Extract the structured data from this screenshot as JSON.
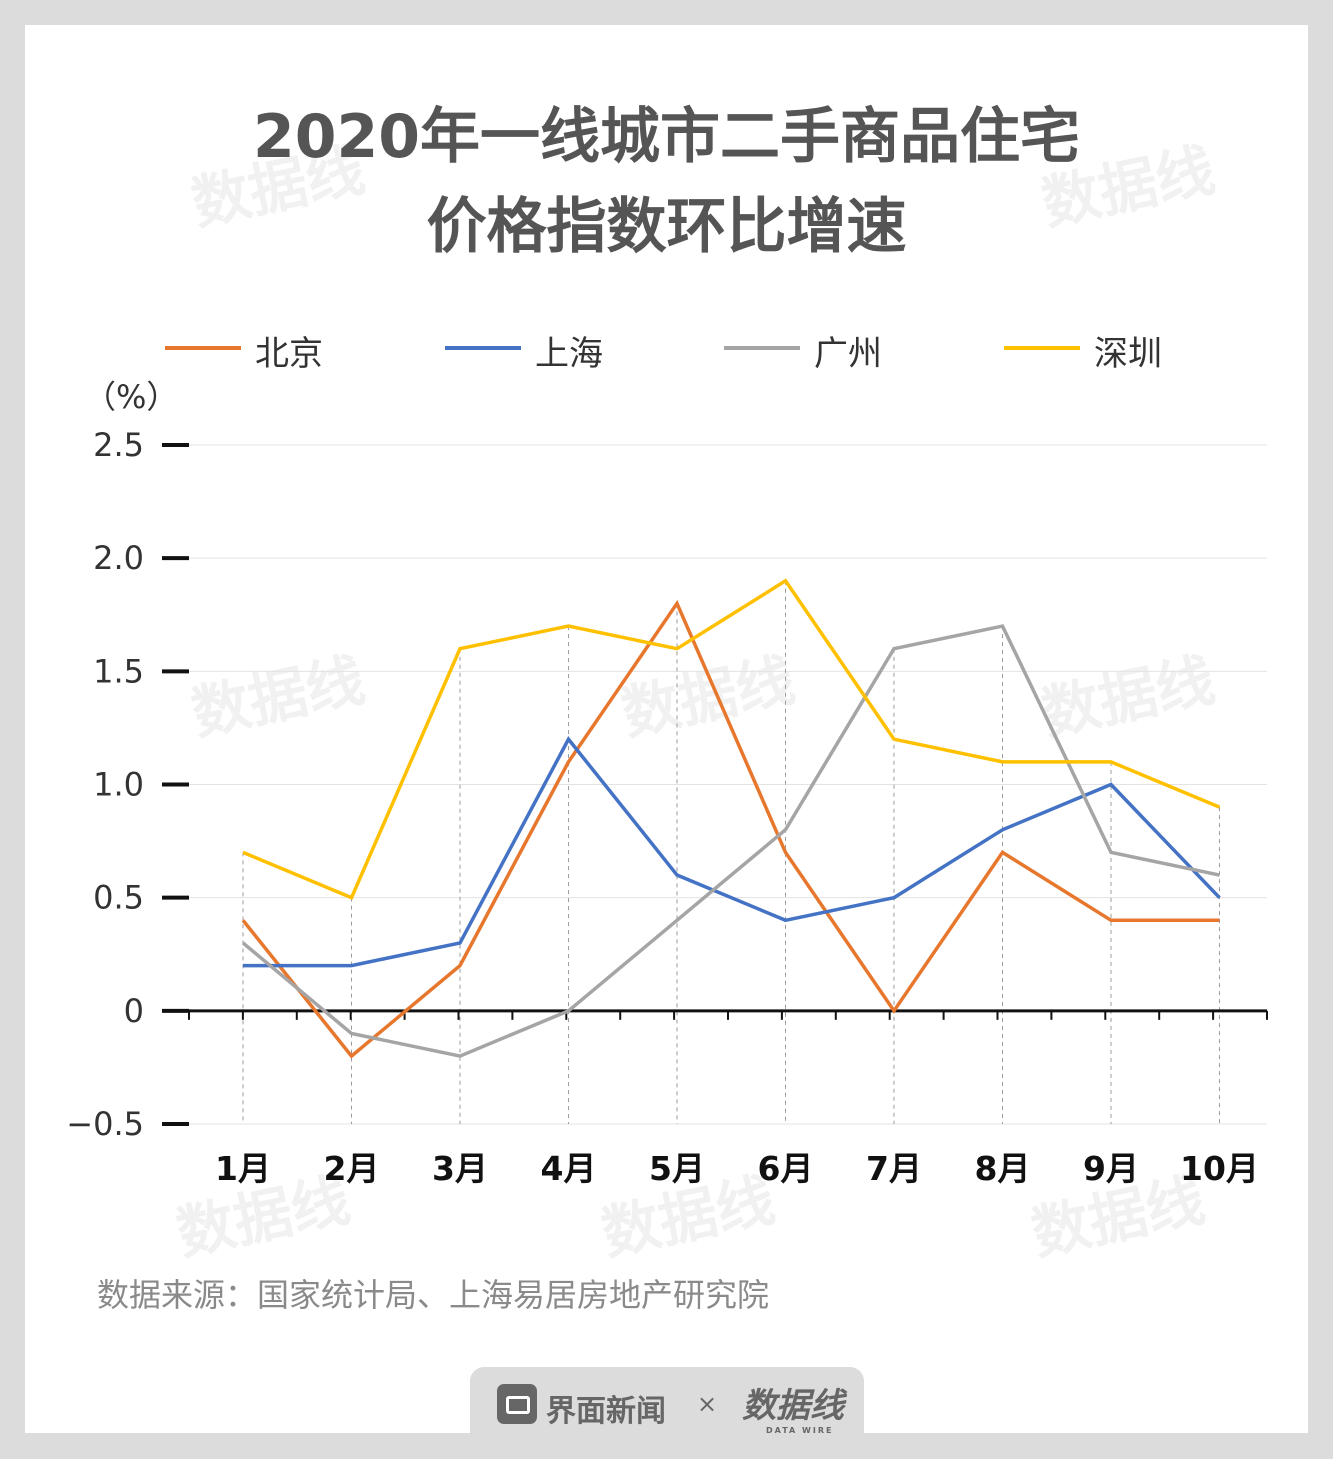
{
  "title_line1": "2020年一线城市二手商品住宅",
  "title_line2": "价格指数环比增速",
  "unit_label": "（%）",
  "source": "数据来源：国家统计局、上海易居房地产研究院",
  "footer": {
    "brand1": "界面新闻",
    "separator": "×",
    "brand2": "数据线",
    "brand2_sub": "DATA WIRE"
  },
  "watermark": "数据线",
  "chart_data": {
    "type": "line",
    "title": "2020年一线城市二手商品住宅价格指数环比增速",
    "ylabel": "（%）",
    "xlabel": "",
    "categories": [
      "1月",
      "2月",
      "3月",
      "4月",
      "5月",
      "6月",
      "7月",
      "8月",
      "9月",
      "10月"
    ],
    "ylim": [
      -0.5,
      2.5
    ],
    "yticks": [
      {
        "value": 2.5,
        "label": "2.5"
      },
      {
        "value": 2.0,
        "label": "2.0"
      },
      {
        "value": 1.5,
        "label": "1.5"
      },
      {
        "value": 1.0,
        "label": "1.0"
      },
      {
        "value": 0.5,
        "label": "0.5"
      },
      {
        "value": 0,
        "label": "0"
      },
      {
        "value": -0.5,
        "label": "−0.5"
      }
    ],
    "grid": true,
    "legend_position": "top",
    "series": [
      {
        "name": "北京",
        "color": "#E8772E",
        "values": [
          0.4,
          -0.2,
          0.2,
          1.1,
          1.8,
          0.7,
          0.0,
          0.7,
          0.4,
          0.4
        ]
      },
      {
        "name": "上海",
        "color": "#4472C4",
        "values": [
          0.2,
          0.2,
          0.3,
          1.2,
          0.6,
          0.4,
          0.5,
          0.8,
          1.0,
          0.5
        ]
      },
      {
        "name": "广州",
        "color": "#A5A5A5",
        "values": [
          0.3,
          -0.1,
          -0.2,
          0.0,
          0.4,
          0.8,
          1.6,
          1.7,
          0.7,
          0.6
        ]
      },
      {
        "name": "深圳",
        "color": "#FFC000",
        "values": [
          0.7,
          0.5,
          1.6,
          1.7,
          1.6,
          1.9,
          1.2,
          1.1,
          1.1,
          0.9
        ]
      }
    ]
  }
}
